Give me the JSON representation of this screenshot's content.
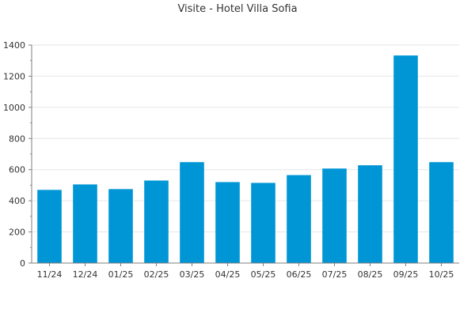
{
  "chart_data": {
    "type": "bar",
    "title": "Visite - Hotel Villa Sofia",
    "xlabel": "",
    "ylabel": "",
    "categories": [
      "11/24",
      "12/24",
      "01/25",
      "02/25",
      "03/25",
      "04/25",
      "05/25",
      "06/25",
      "07/25",
      "08/25",
      "09/25",
      "10/25"
    ],
    "values": [
      470,
      505,
      475,
      530,
      648,
      520,
      515,
      565,
      607,
      628,
      1333,
      648
    ],
    "ylim": [
      0,
      1400
    ],
    "yticks": [
      0,
      200,
      400,
      600,
      800,
      1000,
      1200,
      1400
    ],
    "grid": true,
    "bar_color": "#0096d6",
    "grid_color": "#e6e6e6",
    "axis_color": "#7f7f7f"
  }
}
